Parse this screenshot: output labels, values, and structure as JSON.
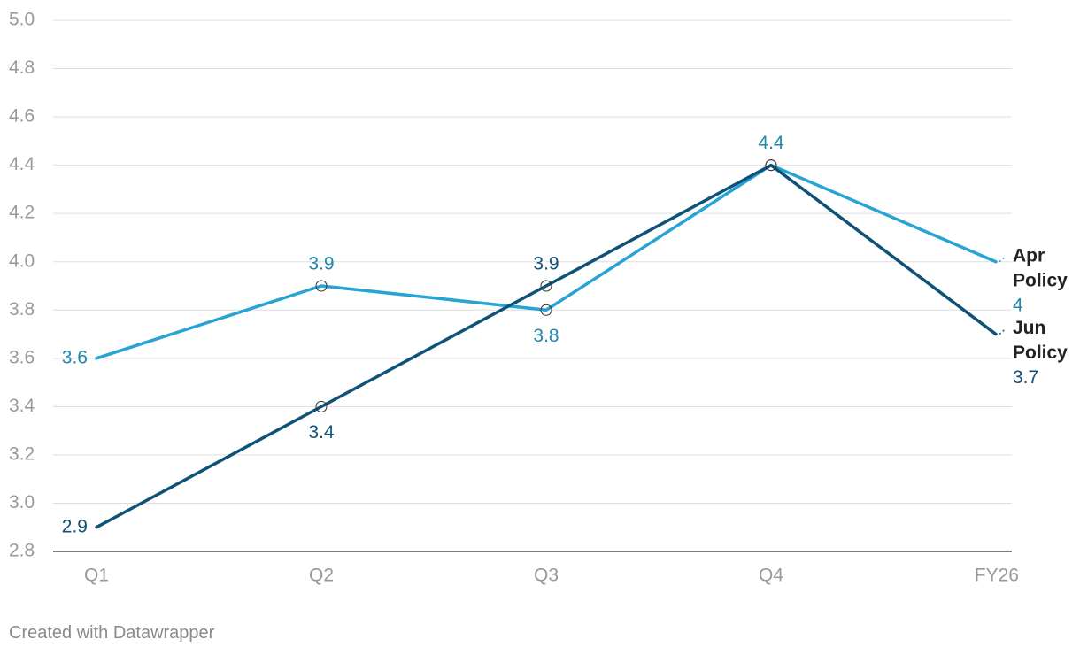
{
  "chart_data": {
    "type": "line",
    "title": "",
    "xlabel": "",
    "ylabel": "",
    "categories": [
      "Q1",
      "Q2",
      "Q3",
      "Q4",
      "FY26"
    ],
    "ylim": [
      2.8,
      5.0
    ],
    "yticks": [
      "5.0",
      "4.8",
      "4.6",
      "4.4",
      "4.2",
      "4.0",
      "3.8",
      "3.6",
      "3.4",
      "3.2",
      "3.0",
      "2.8"
    ],
    "grid": true,
    "series": [
      {
        "key": "apr",
        "name_line1": "Apr",
        "name_line2": "Policy",
        "end_label": "4",
        "color": "#27a4d4",
        "values": [
          3.6,
          3.9,
          3.8,
          4.4,
          4.0
        ],
        "labels": [
          "3.6",
          "3.9",
          "3.8",
          "4.4",
          ""
        ]
      },
      {
        "key": "jun",
        "name_line1": "Jun",
        "name_line2": "Policy",
        "end_label": "3.7",
        "color": "#0f5278",
        "values": [
          2.9,
          3.4,
          3.9,
          4.4,
          3.7
        ],
        "labels": [
          "2.9",
          "3.4",
          "3.9",
          "",
          ""
        ]
      }
    ]
  },
  "footer": {
    "credit": "Created with Datawrapper"
  }
}
